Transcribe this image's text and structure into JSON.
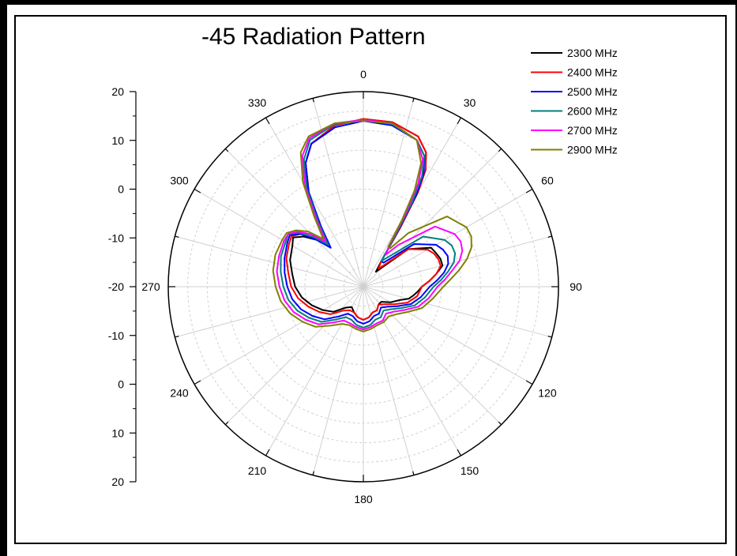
{
  "chart_data": {
    "type": "polar-line",
    "title": "-45 Radiation Pattern",
    "angle_ticks": [
      "0",
      "30",
      "60",
      "90",
      "120",
      "150",
      "180",
      "210",
      "240",
      "270",
      "300",
      "330"
    ],
    "radial_axis": {
      "range": [
        -30,
        20
      ],
      "tick_labels": [
        "20",
        "10",
        "0",
        "-10",
        "-20",
        "-10",
        "0",
        "10",
        "20"
      ]
    },
    "grid": true,
    "legend_position": "top-right",
    "series": [
      {
        "name": "2300 MHz",
        "color": "#000000",
        "points": [
          [
            0,
            13
          ],
          [
            10,
            12.8
          ],
          [
            20,
            11
          ],
          [
            25,
            8
          ],
          [
            28,
            4
          ],
          [
            30,
            -2
          ],
          [
            32,
            -12
          ],
          [
            35,
            -22
          ],
          [
            40,
            -25
          ],
          [
            50,
            -15
          ],
          [
            60,
            -10
          ],
          [
            65,
            -9.5
          ],
          [
            70,
            -9
          ],
          [
            75,
            -9
          ],
          [
            80,
            -11
          ],
          [
            85,
            -13
          ],
          [
            90,
            -15
          ],
          [
            95,
            -16
          ],
          [
            100,
            -17
          ],
          [
            105,
            -18
          ],
          [
            110,
            -20
          ],
          [
            120,
            -22
          ],
          [
            130,
            -24
          ],
          [
            140,
            -24
          ],
          [
            150,
            -23
          ],
          [
            160,
            -23
          ],
          [
            170,
            -22
          ],
          [
            180,
            -21.5
          ],
          [
            190,
            -22
          ],
          [
            200,
            -23
          ],
          [
            210,
            -24
          ],
          [
            220,
            -23
          ],
          [
            230,
            -20
          ],
          [
            240,
            -18
          ],
          [
            250,
            -16
          ],
          [
            260,
            -14
          ],
          [
            270,
            -12.5
          ],
          [
            280,
            -11.5
          ],
          [
            290,
            -10
          ],
          [
            300,
            -9
          ],
          [
            305,
            -8
          ],
          [
            310,
            -10
          ],
          [
            315,
            -13
          ],
          [
            320,
            -15
          ],
          [
            325,
            -10
          ],
          [
            330,
            -2
          ],
          [
            335,
            5
          ],
          [
            340,
            9
          ],
          [
            350,
            12
          ],
          [
            360,
            13
          ]
        ]
      },
      {
        "name": "2400 MHz",
        "color": "#ff0000",
        "points": [
          [
            0,
            13
          ],
          [
            10,
            12.8
          ],
          [
            20,
            11
          ],
          [
            25,
            8
          ],
          [
            28,
            4
          ],
          [
            30,
            -2
          ],
          [
            32,
            -12
          ],
          [
            35,
            -22
          ],
          [
            40,
            -24
          ],
          [
            50,
            -15
          ],
          [
            60,
            -11
          ],
          [
            65,
            -10
          ],
          [
            70,
            -9.5
          ],
          [
            75,
            -9.5
          ],
          [
            80,
            -11
          ],
          [
            85,
            -13
          ],
          [
            90,
            -15
          ],
          [
            100,
            -16
          ],
          [
            110,
            -18
          ],
          [
            120,
            -21
          ],
          [
            130,
            -23
          ],
          [
            140,
            -24
          ],
          [
            150,
            -23
          ],
          [
            160,
            -23
          ],
          [
            170,
            -22
          ],
          [
            180,
            -21.5
          ],
          [
            190,
            -22
          ],
          [
            200,
            -23
          ],
          [
            210,
            -23
          ],
          [
            220,
            -22
          ],
          [
            230,
            -19
          ],
          [
            240,
            -17
          ],
          [
            250,
            -15
          ],
          [
            260,
            -13
          ],
          [
            270,
            -11.5
          ],
          [
            280,
            -10.5
          ],
          [
            290,
            -9
          ],
          [
            300,
            -8
          ],
          [
            305,
            -7.5
          ],
          [
            310,
            -9
          ],
          [
            315,
            -12
          ],
          [
            320,
            -15
          ],
          [
            325,
            -10
          ],
          [
            330,
            -2
          ],
          [
            335,
            5
          ],
          [
            340,
            9
          ],
          [
            350,
            12
          ],
          [
            360,
            13
          ]
        ]
      },
      {
        "name": "2500 MHz",
        "color": "#0000ff",
        "points": [
          [
            0,
            12.5
          ],
          [
            10,
            12
          ],
          [
            20,
            10
          ],
          [
            25,
            7
          ],
          [
            28,
            3
          ],
          [
            30,
            -3
          ],
          [
            32,
            -14
          ],
          [
            35,
            -22
          ],
          [
            40,
            -22
          ],
          [
            50,
            -13
          ],
          [
            60,
            -8.5
          ],
          [
            65,
            -7.5
          ],
          [
            70,
            -7
          ],
          [
            75,
            -7.5
          ],
          [
            80,
            -9
          ],
          [
            85,
            -11
          ],
          [
            90,
            -13
          ],
          [
            100,
            -15
          ],
          [
            110,
            -17
          ],
          [
            120,
            -20
          ],
          [
            130,
            -22
          ],
          [
            140,
            -23
          ],
          [
            150,
            -22
          ],
          [
            160,
            -22
          ],
          [
            170,
            -21
          ],
          [
            180,
            -20.5
          ],
          [
            190,
            -21
          ],
          [
            200,
            -22
          ],
          [
            210,
            -22
          ],
          [
            220,
            -20
          ],
          [
            230,
            -17
          ],
          [
            240,
            -15
          ],
          [
            250,
            -13
          ],
          [
            260,
            -11.5
          ],
          [
            270,
            -10.5
          ],
          [
            280,
            -9.5
          ],
          [
            290,
            -8.5
          ],
          [
            300,
            -7.5
          ],
          [
            305,
            -7
          ],
          [
            310,
            -9
          ],
          [
            315,
            -13
          ],
          [
            320,
            -17
          ],
          [
            325,
            -11
          ],
          [
            330,
            -2
          ],
          [
            335,
            5
          ],
          [
            340,
            9
          ],
          [
            350,
            11.5
          ],
          [
            360,
            12.5
          ]
        ]
      },
      {
        "name": "2600 MHz",
        "color": "#008080",
        "points": [
          [
            0,
            12.8
          ],
          [
            10,
            12.3
          ],
          [
            20,
            10
          ],
          [
            25,
            7
          ],
          [
            28,
            2
          ],
          [
            30,
            -5
          ],
          [
            32,
            -15
          ],
          [
            35,
            -22
          ],
          [
            40,
            -20
          ],
          [
            50,
            -10
          ],
          [
            60,
            -6
          ],
          [
            65,
            -5
          ],
          [
            70,
            -5
          ],
          [
            75,
            -6
          ],
          [
            80,
            -8
          ],
          [
            85,
            -10
          ],
          [
            90,
            -12
          ],
          [
            100,
            -14
          ],
          [
            110,
            -16
          ],
          [
            120,
            -19
          ],
          [
            130,
            -21
          ],
          [
            140,
            -22
          ],
          [
            150,
            -21
          ],
          [
            160,
            -21
          ],
          [
            170,
            -20
          ],
          [
            180,
            -19.5
          ],
          [
            190,
            -20
          ],
          [
            200,
            -21
          ],
          [
            210,
            -21
          ],
          [
            220,
            -19
          ],
          [
            230,
            -16
          ],
          [
            240,
            -14
          ],
          [
            250,
            -12
          ],
          [
            260,
            -10.5
          ],
          [
            270,
            -9.5
          ],
          [
            280,
            -8.5
          ],
          [
            290,
            -7.5
          ],
          [
            300,
            -7
          ],
          [
            305,
            -6.5
          ],
          [
            310,
            -8.5
          ],
          [
            315,
            -12
          ],
          [
            320,
            -16
          ],
          [
            325,
            -10
          ],
          [
            330,
            -1
          ],
          [
            335,
            6
          ],
          [
            340,
            10
          ],
          [
            350,
            12.3
          ],
          [
            360,
            12.8
          ]
        ]
      },
      {
        "name": "2700 MHz",
        "color": "#ff00ff",
        "points": [
          [
            0,
            12.8
          ],
          [
            10,
            12.5
          ],
          [
            20,
            10
          ],
          [
            25,
            6
          ],
          [
            28,
            0
          ],
          [
            30,
            -8
          ],
          [
            32,
            -17
          ],
          [
            35,
            -20
          ],
          [
            40,
            -16
          ],
          [
            50,
            -6
          ],
          [
            60,
            -3
          ],
          [
            65,
            -2.5
          ],
          [
            70,
            -3
          ],
          [
            75,
            -4.5
          ],
          [
            80,
            -7
          ],
          [
            85,
            -9
          ],
          [
            90,
            -11
          ],
          [
            100,
            -13
          ],
          [
            110,
            -15
          ],
          [
            120,
            -18
          ],
          [
            130,
            -20
          ],
          [
            140,
            -21
          ],
          [
            150,
            -20
          ],
          [
            160,
            -20
          ],
          [
            170,
            -19.5
          ],
          [
            180,
            -19
          ],
          [
            190,
            -19.5
          ],
          [
            200,
            -20
          ],
          [
            210,
            -20
          ],
          [
            220,
            -18
          ],
          [
            230,
            -15
          ],
          [
            240,
            -13
          ],
          [
            250,
            -11
          ],
          [
            260,
            -9.5
          ],
          [
            270,
            -8.5
          ],
          [
            280,
            -7.5
          ],
          [
            290,
            -7
          ],
          [
            300,
            -6.5
          ],
          [
            305,
            -6.5
          ],
          [
            310,
            -8
          ],
          [
            315,
            -11
          ],
          [
            320,
            -15
          ],
          [
            325,
            -9
          ],
          [
            330,
            0
          ],
          [
            335,
            7
          ],
          [
            340,
            10.5
          ],
          [
            350,
            12.5
          ],
          [
            360,
            12.8
          ]
        ]
      },
      {
        "name": "2900 MHz",
        "color": "#808000",
        "points": [
          [
            0,
            12.5
          ],
          [
            10,
            12.5
          ],
          [
            20,
            10
          ],
          [
            25,
            5
          ],
          [
            28,
            -2
          ],
          [
            30,
            -10
          ],
          [
            32,
            -18
          ],
          [
            35,
            -18
          ],
          [
            40,
            -12
          ],
          [
            50,
            -2
          ],
          [
            60,
            0.5
          ],
          [
            65,
            0.5
          ],
          [
            70,
            -0.5
          ],
          [
            75,
            -2.5
          ],
          [
            80,
            -5
          ],
          [
            85,
            -7.5
          ],
          [
            90,
            -9.5
          ],
          [
            100,
            -12
          ],
          [
            110,
            -14
          ],
          [
            120,
            -17
          ],
          [
            130,
            -19
          ],
          [
            140,
            -20
          ],
          [
            150,
            -19.5
          ],
          [
            160,
            -19.5
          ],
          [
            170,
            -19
          ],
          [
            180,
            -18.5
          ],
          [
            190,
            -19
          ],
          [
            200,
            -19.5
          ],
          [
            210,
            -19
          ],
          [
            220,
            -17
          ],
          [
            230,
            -14
          ],
          [
            240,
            -12
          ],
          [
            250,
            -10
          ],
          [
            260,
            -8.5
          ],
          [
            270,
            -7.5
          ],
          [
            280,
            -6.5
          ],
          [
            290,
            -6
          ],
          [
            300,
            -6
          ],
          [
            305,
            -6
          ],
          [
            310,
            -7.5
          ],
          [
            315,
            -10
          ],
          [
            320,
            -14
          ],
          [
            325,
            -8
          ],
          [
            330,
            1
          ],
          [
            335,
            8
          ],
          [
            340,
            11
          ],
          [
            350,
            12.5
          ],
          [
            360,
            12.5
          ]
        ]
      }
    ]
  }
}
